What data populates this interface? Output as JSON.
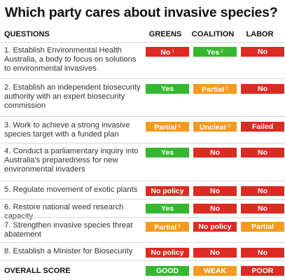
{
  "title": "Which party cares about invasive species?",
  "colors": {
    "red": "#db2b23",
    "green": "#35b830",
    "orange": "#f59a1e"
  },
  "header": {
    "questions": "QUESTIONS",
    "greens": "GREENS",
    "coalition": "COALITION",
    "labor": "LABOR"
  },
  "rows": [
    {
      "question": "1. Establish Environmental Health Australia, a body to focus on solutions to environmental invasives",
      "greens": {
        "text": "No",
        "note": "1",
        "color": "red"
      },
      "coalition": {
        "text": "Yes",
        "note": "2",
        "color": "green"
      },
      "labor": {
        "text": "No",
        "note": "",
        "color": "red"
      }
    },
    {
      "question": "2. Establish an independent biosecurity authority with an expert biosecurity commission",
      "greens": {
        "text": "Yes",
        "note": "",
        "color": "green"
      },
      "coalition": {
        "text": "Partial",
        "note": "3",
        "color": "orange"
      },
      "labor": {
        "text": "No",
        "note": "",
        "color": "red"
      }
    },
    {
      "question": "3. Work to achieve a strong invasive species target with a funded plan",
      "greens": {
        "text": "Partial",
        "note": "4",
        "color": "orange"
      },
      "coalition": {
        "text": "Unclear",
        "note": "5",
        "color": "orange"
      },
      "labor": {
        "text": "Failed",
        "note": "",
        "color": "red"
      }
    },
    {
      "question": "4. Conduct a parliamentary inquiry into Australia's preparedness for new environmental invaders",
      "greens": {
        "text": "Yes",
        "note": "",
        "color": "green"
      },
      "coalition": {
        "text": "No",
        "note": "",
        "color": "red"
      },
      "labor": {
        "text": "No",
        "note": "",
        "color": "red"
      }
    },
    {
      "question": "5. Regulate movement of exotic plants",
      "greens": {
        "text": "No policy",
        "note": "",
        "color": "red"
      },
      "coalition": {
        "text": "No",
        "note": "",
        "color": "red"
      },
      "labor": {
        "text": "No",
        "note": "",
        "color": "red"
      }
    },
    {
      "question": "6. Restore national weed research capacity",
      "greens": {
        "text": "Yes",
        "note": "",
        "color": "green"
      },
      "coalition": {
        "text": "No",
        "note": "",
        "color": "red"
      },
      "labor": {
        "text": "No",
        "note": "",
        "color": "red"
      }
    },
    {
      "question": "7. Strengthen invasive species threat abatement",
      "greens": {
        "text": "Partial",
        "note": "5",
        "color": "orange"
      },
      "coalition": {
        "text": "No policy",
        "note": "",
        "color": "red"
      },
      "labor": {
        "text": "Partial",
        "note": "",
        "color": "orange"
      }
    },
    {
      "question": "8. Establish a Minister for Biosecurity",
      "greens": {
        "text": "No policy",
        "note": "",
        "color": "red"
      },
      "coalition": {
        "text": "No",
        "note": "",
        "color": "red"
      },
      "labor": {
        "text": "No",
        "note": "",
        "color": "red"
      }
    }
  ],
  "overall": {
    "label": "OVERALL SCORE",
    "greens": {
      "text": "GOOD",
      "color": "green"
    },
    "coalition": {
      "text": "WEAK",
      "color": "orange"
    },
    "labor": {
      "text": "POOR",
      "color": "red"
    }
  }
}
